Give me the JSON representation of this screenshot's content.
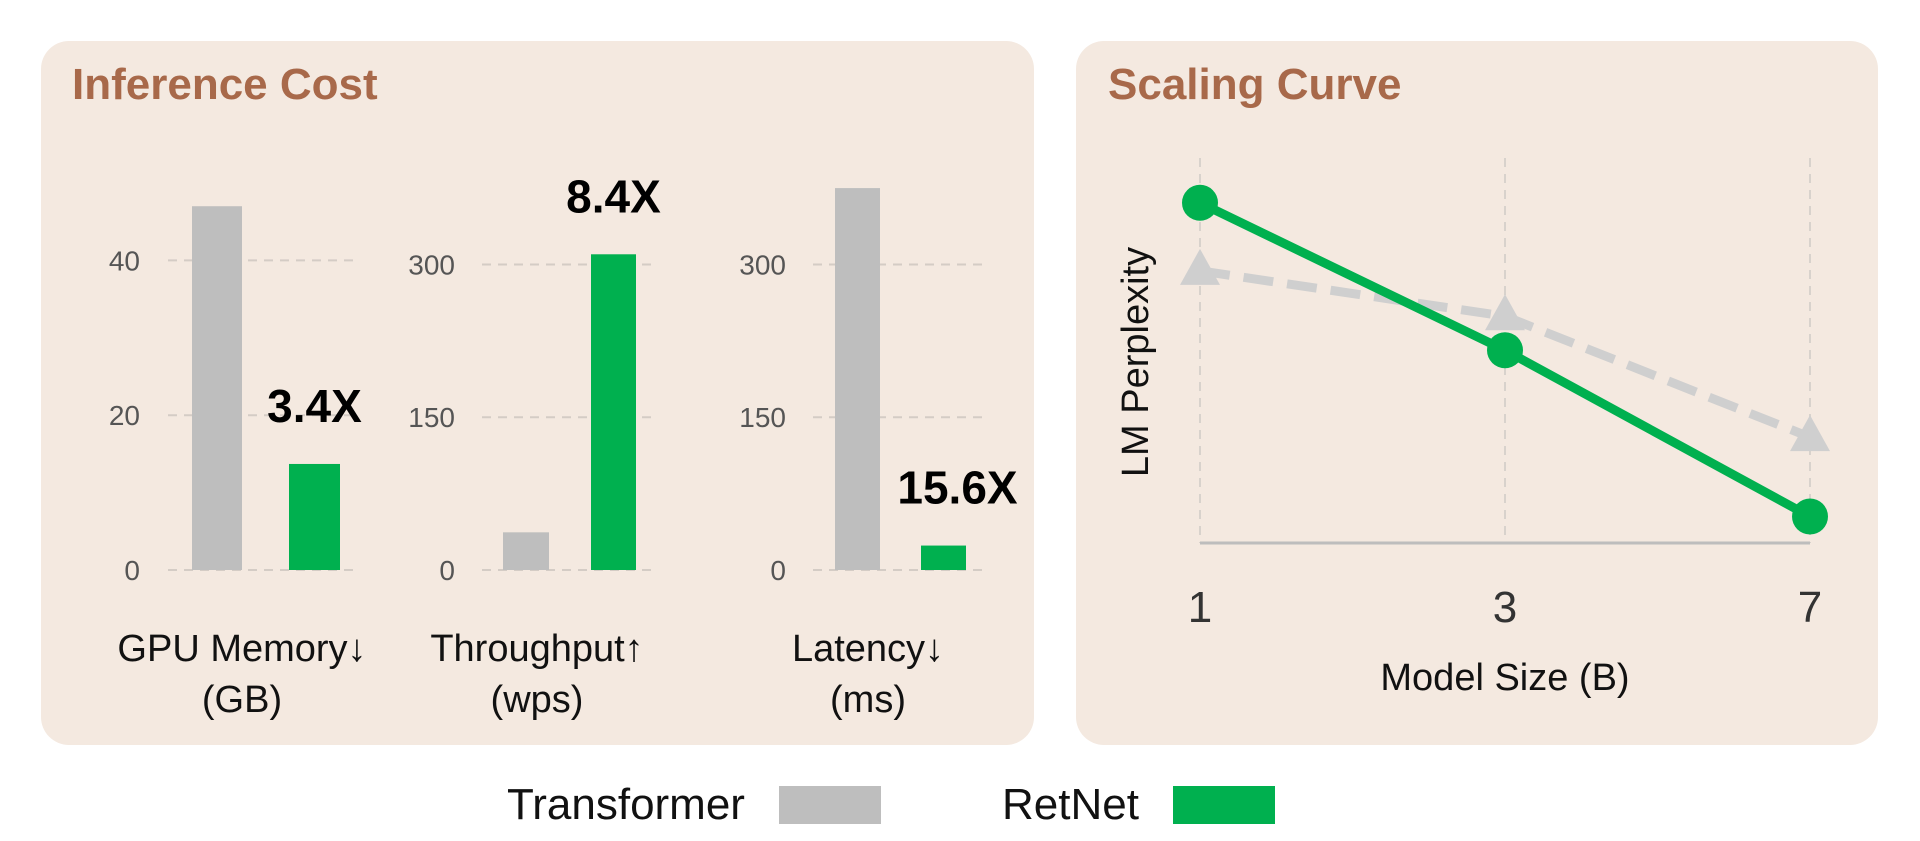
{
  "panels": {
    "inference_title": "Inference Cost",
    "scaling_title": "Scaling Curve"
  },
  "colors": {
    "transformer": "#bebebe",
    "retnet": "#00b04f",
    "panel_bg": "#f4e9e0",
    "title": "#a8694a"
  },
  "legend": {
    "transformer_label": "Transformer",
    "retnet_label": "RetNet"
  },
  "chart_data": [
    {
      "type": "bar",
      "xlabel_lines": [
        "GPU Memory↓",
        "(GB)"
      ],
      "categories": [
        "Transformer",
        "RetNet"
      ],
      "series": [
        {
          "values": [
            47,
            13.7
          ]
        }
      ],
      "ylim": [
        0,
        50
      ],
      "yticks": [
        0,
        20,
        40
      ],
      "annotation": "3.4X",
      "grid": true
    },
    {
      "type": "bar",
      "xlabel_lines": [
        "Throughput↑",
        "(wps)"
      ],
      "categories": [
        "Transformer",
        "RetNet"
      ],
      "series": [
        {
          "values": [
            37,
            310
          ]
        }
      ],
      "ylim": [
        0,
        380
      ],
      "yticks": [
        0,
        150,
        300
      ],
      "annotation": "8.4X",
      "grid": true
    },
    {
      "type": "bar",
      "xlabel_lines": [
        "Latency↓",
        "(ms)"
      ],
      "categories": [
        "Transformer",
        "RetNet"
      ],
      "series": [
        {
          "values": [
            375,
            24
          ]
        }
      ],
      "ylim": [
        0,
        380
      ],
      "yticks": [
        0,
        150,
        300
      ],
      "annotation": "15.6X",
      "grid": true
    },
    {
      "type": "line",
      "xlabel": "Model Size (B)",
      "ylabel": "LM Perplexity",
      "x": [
        "1",
        "3",
        "7"
      ],
      "series": [
        {
          "name": "Transformer",
          "values": [
            0.72,
            0.6,
            0.28
          ],
          "style": "dashed",
          "marker": "triangle"
        },
        {
          "name": "RetNet",
          "values": [
            0.9,
            0.51,
            0.07
          ],
          "style": "solid",
          "marker": "circle"
        }
      ],
      "ylim": [
        0,
        1
      ],
      "grid": true
    }
  ]
}
